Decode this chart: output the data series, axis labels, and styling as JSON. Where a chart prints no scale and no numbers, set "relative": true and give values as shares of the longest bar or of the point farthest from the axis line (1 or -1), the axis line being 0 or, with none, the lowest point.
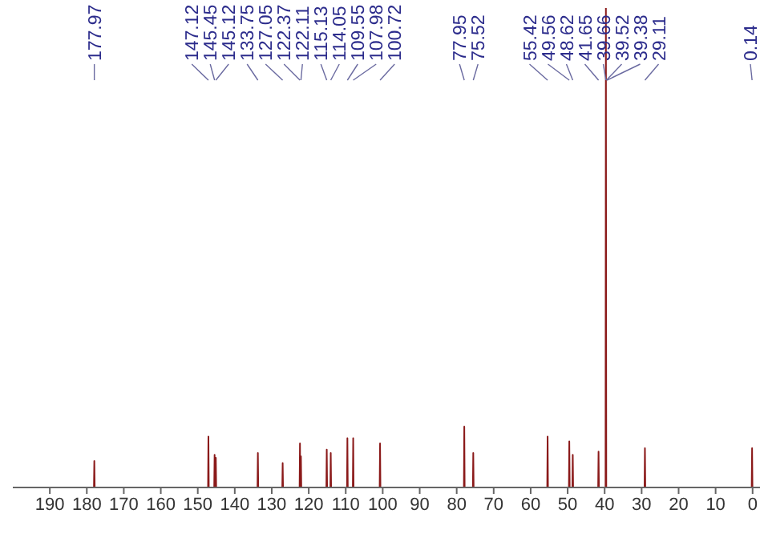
{
  "chart_data": {
    "type": "line",
    "relative": true,
    "marker": "none",
    "xlim": [
      200,
      -2
    ],
    "xticks": [
      190,
      180,
      170,
      160,
      150,
      140,
      130,
      120,
      110,
      100,
      90,
      80,
      70,
      60,
      50,
      40,
      30,
      20,
      10,
      0
    ],
    "series": [
      {
        "color": "#8b1a1a",
        "x": [
          199,
          178.07,
          177.97,
          177.87,
          147.22,
          147.12,
          147.02,
          145.55,
          145.45,
          145.35,
          145.22,
          145.12,
          145.02,
          133.85,
          133.75,
          133.65,
          127.15,
          127.05,
          126.95,
          122.47,
          122.37,
          122.27,
          122.21,
          122.11,
          122.01,
          115.23,
          115.13,
          115.03,
          114.15,
          114.05,
          113.95,
          109.65,
          109.55,
          109.45,
          108.08,
          107.98,
          107.88,
          100.82,
          100.72,
          100.62,
          78.05,
          77.95,
          77.85,
          75.62,
          75.52,
          75.42,
          55.52,
          55.42,
          55.32,
          49.66,
          49.56,
          49.46,
          48.72,
          48.62,
          48.52,
          41.75,
          41.65,
          41.55,
          39.76,
          39.66,
          39.56,
          29.21,
          29.11,
          29.01,
          0.24,
          0.14,
          0.04,
          -1.5
        ],
        "values": [
          0,
          0,
          0.055,
          0,
          0,
          0.106,
          0,
          0,
          0.068,
          0,
          0,
          0.062,
          0,
          0,
          0.072,
          0,
          0,
          0.051,
          0,
          0,
          0.092,
          0,
          0,
          0.065,
          0,
          0,
          0.079,
          0,
          0,
          0.072,
          0,
          0,
          0.103,
          0,
          0,
          0.103,
          0,
          0,
          0.092,
          0,
          0,
          0.127,
          0,
          0,
          0.072,
          0,
          0,
          0.106,
          0,
          0,
          0.096,
          0,
          0,
          0.068,
          0,
          0,
          0.075,
          0,
          0,
          1,
          0,
          0,
          0.082,
          0,
          0,
          0.082,
          0,
          0
        ]
      }
    ],
    "annotations": [
      {
        "text": "177.97",
        "x": 177.97
      },
      {
        "text": "147.12",
        "x": 147.12
      },
      {
        "text": "145.45",
        "x": 145.45
      },
      {
        "text": "145.12",
        "x": 145.12
      },
      {
        "text": "133.75",
        "x": 133.75
      },
      {
        "text": "127.05",
        "x": 127.05
      },
      {
        "text": "122.37",
        "x": 122.37
      },
      {
        "text": "122.11",
        "x": 122.11
      },
      {
        "text": "115.13",
        "x": 115.13
      },
      {
        "text": "114.05",
        "x": 114.05
      },
      {
        "text": "109.55",
        "x": 109.55
      },
      {
        "text": "107.98",
        "x": 107.98
      },
      {
        "text": "100.72",
        "x": 100.72
      },
      {
        "text": "77.95",
        "x": 77.95
      },
      {
        "text": "75.52",
        "x": 75.52
      },
      {
        "text": "55.42",
        "x": 55.42
      },
      {
        "text": "49.56",
        "x": 49.56
      },
      {
        "text": "48.62",
        "x": 48.62
      },
      {
        "text": "41.65",
        "x": 41.65
      },
      {
        "text": "39.66",
        "x": 39.66
      },
      {
        "text": "39.52",
        "x": 39.52
      },
      {
        "text": "39.38",
        "x": 39.38
      },
      {
        "text": "29.11",
        "x": 29.11
      },
      {
        "text": "0.14",
        "x": 0.14
      }
    ]
  }
}
